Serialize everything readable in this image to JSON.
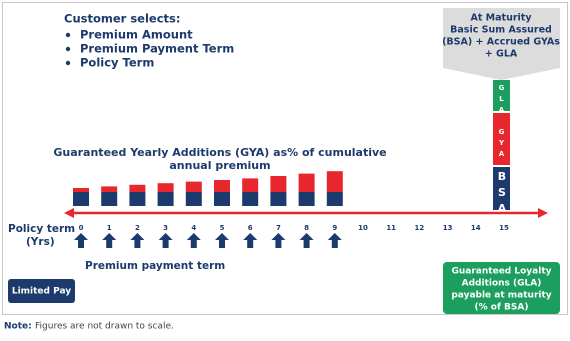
{
  "customer_selects": {
    "heading": "Customer selects:",
    "items": [
      "Premium Amount",
      "Premium Payment Term",
      "Policy Term"
    ]
  },
  "maturity": {
    "lines": [
      "At Maturity",
      "Basic Sum Assured",
      "(BSA) + Accrued GYAs",
      "+ GLA"
    ]
  },
  "stack": {
    "top": "GLA",
    "middle": "GYA",
    "bottom": "BSA"
  },
  "gya_title": [
    "Guaranteed Yearly Additions (GYA) as% of cumulative",
    "annual premium"
  ],
  "timeline": {
    "label": [
      "Policy term",
      "(Yrs)"
    ],
    "ticks": [
      "0",
      "1",
      "2",
      "3",
      "4",
      "5",
      "6",
      "7",
      "8",
      "9",
      "10",
      "11",
      "12",
      "13",
      "14",
      "15"
    ]
  },
  "premium_payment_term": "Premium payment term",
  "limited_pay": "Limited Pay",
  "gla_box": [
    "Guaranteed Loyalty",
    "Additions (GLA)",
    "payable at maturity",
    "(% of BSA)"
  ],
  "note": {
    "label": "Note:",
    "text": "Figures are not drawn to scale."
  }
}
